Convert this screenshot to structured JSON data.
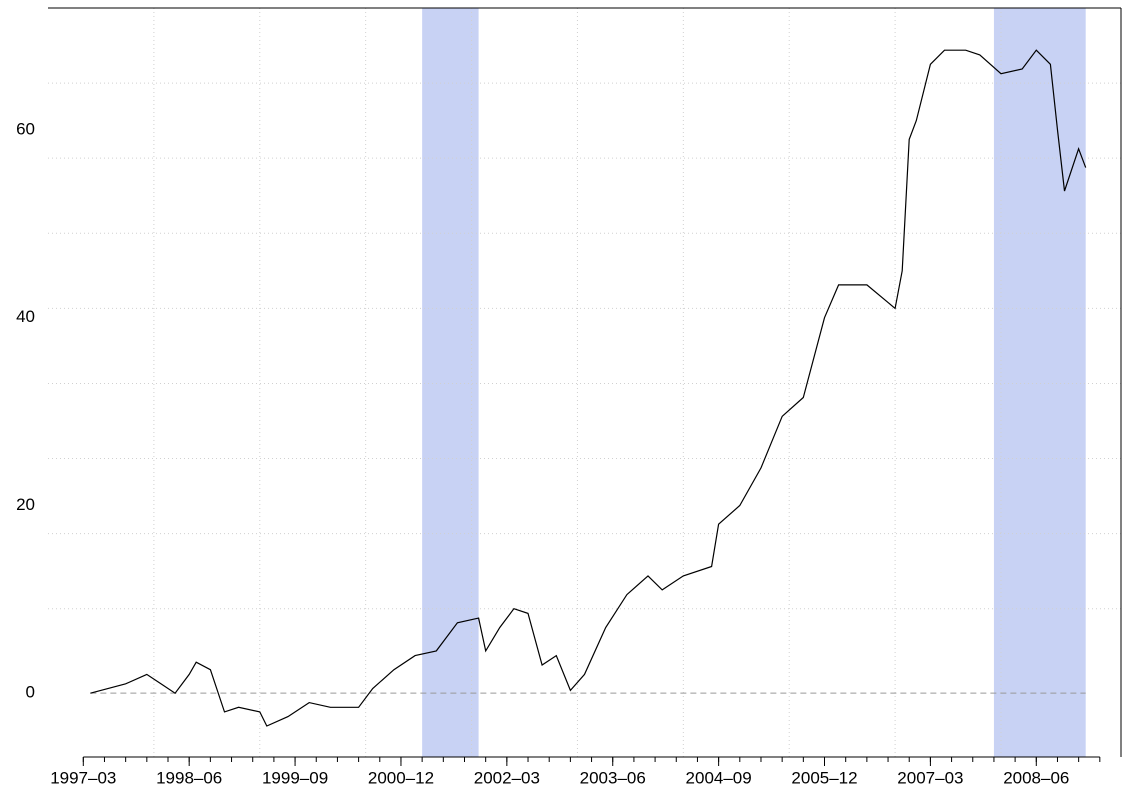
{
  "chart_data": {
    "type": "line",
    "x": [
      "1997-04",
      "1997-09",
      "1997-12",
      "1998-02",
      "1998-04",
      "1998-06",
      "1998-07",
      "1998-09",
      "1998-11",
      "1999-01",
      "1999-04",
      "1999-05",
      "1999-08",
      "1999-11",
      "2000-02",
      "2000-06",
      "2000-08",
      "2000-11",
      "2001-02",
      "2001-05",
      "2001-08",
      "2001-11",
      "2001-12",
      "2002-02",
      "2002-04",
      "2002-06",
      "2002-08",
      "2002-10",
      "2002-12",
      "2003-02",
      "2003-05",
      "2003-08",
      "2003-11",
      "2004-01",
      "2004-04",
      "2004-08",
      "2004-09",
      "2004-12",
      "2005-03",
      "2005-06",
      "2005-09",
      "2005-12",
      "2006-02",
      "2006-06",
      "2006-10",
      "2006-11",
      "2006-12",
      "2007-01",
      "2007-03",
      "2007-05",
      "2007-08",
      "2007-10",
      "2008-01",
      "2008-04",
      "2008-06",
      "2008-08",
      "2008-09",
      "2008-10",
      "2008-12",
      "2009-01"
    ],
    "values": [
      0,
      1,
      2,
      1,
      0,
      2,
      3.3,
      2.5,
      -2,
      -1.5,
      -2,
      -3.5,
      -2.5,
      -1,
      -1.5,
      -1.5,
      0.5,
      2.5,
      4,
      4.5,
      7.5,
      8,
      4.5,
      7,
      9,
      8.5,
      3,
      4,
      0.3,
      2,
      7,
      10.5,
      12.5,
      11,
      12.5,
      13.5,
      18,
      20,
      24,
      29.5,
      31.5,
      40,
      43.5,
      43.5,
      41,
      45,
      59,
      61,
      67,
      68.5,
      68.5,
      68,
      66,
      66.5,
      68.5,
      67,
      60,
      53.5,
      58,
      56
    ],
    "color": "#000000",
    "xlim": [
      "1996-10",
      "2009-06"
    ],
    "ylim": [
      -6.8,
      73
    ],
    "yticks": [
      0,
      20,
      40,
      60
    ],
    "xticks": [
      {
        "value": "1997-03",
        "label": "1997–03"
      },
      {
        "value": "1998-06",
        "label": "1998–06"
      },
      {
        "value": "1999-09",
        "label": "1999–09"
      },
      {
        "value": "2000-12",
        "label": "2000–12"
      },
      {
        "value": "2002-03",
        "label": "2002–03"
      },
      {
        "value": "2003-06",
        "label": "2003–06"
      },
      {
        "value": "2004-09",
        "label": "2004–09"
      },
      {
        "value": "2005-12",
        "label": "2005–12"
      },
      {
        "value": "2007-03",
        "label": "2007–03"
      },
      {
        "value": "2008-06",
        "label": "2008–06"
      }
    ],
    "xminorticks": [
      "1997-03",
      "1997-06",
      "1997-09",
      "1997-12",
      "1998-03",
      "1998-06",
      "1998-09",
      "1998-12",
      "1999-03",
      "1999-06",
      "1999-09",
      "1999-12",
      "2000-03",
      "2000-06",
      "2000-09",
      "2000-12",
      "2001-03",
      "2001-06",
      "2001-09",
      "2001-12",
      "2002-03",
      "2002-06",
      "2002-09",
      "2002-12",
      "2003-03",
      "2003-06",
      "2003-09",
      "2003-12",
      "2004-03",
      "2004-06",
      "2004-09",
      "2004-12",
      "2005-03",
      "2005-06",
      "2005-09",
      "2005-12",
      "2006-03",
      "2006-06",
      "2006-09",
      "2006-12",
      "2007-03",
      "2007-06",
      "2007-09",
      "2007-12",
      "2008-03",
      "2008-06",
      "2008-09",
      "2008-12",
      "2009-03"
    ],
    "xgrid": [
      "1998-01",
      "1999-04",
      "2000-07",
      "2001-10",
      "2003-01",
      "2004-04",
      "2005-07",
      "2006-10",
      "2008-01"
    ],
    "ygrid": [
      9,
      17,
      25,
      33,
      41,
      49,
      57,
      65
    ],
    "hline": 0,
    "shaded": [
      {
        "start": "2001-03",
        "end": "2001-11"
      },
      {
        "start": "2007-12",
        "end": "2009-01"
      }
    ],
    "shade_color": "#c8d2f4"
  }
}
